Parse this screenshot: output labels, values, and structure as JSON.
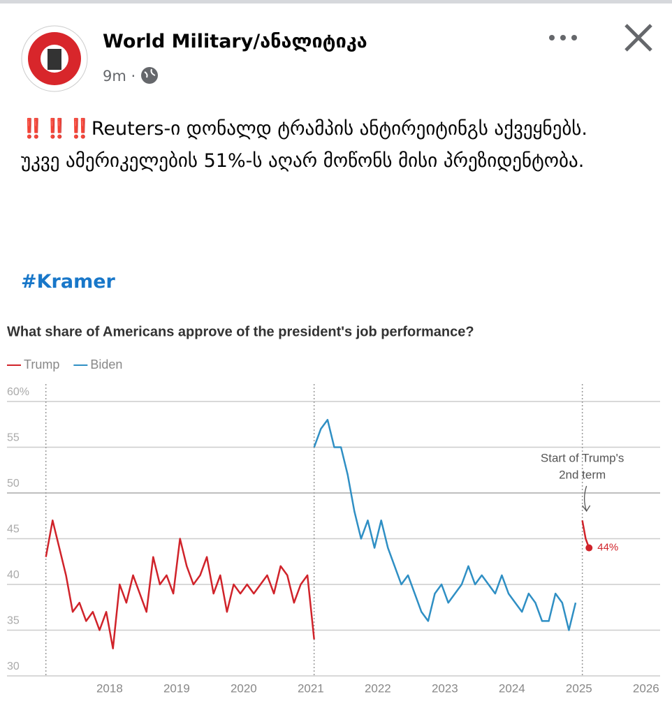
{
  "post": {
    "author": "World Military/ანალიტიკა",
    "time": "9m",
    "paragraphs": [
      "‼️‼️‼️Reuters-ი დონალდ ტრამპის ანტირეიტინგს აქვეყნებს.",
      "უკვე ამერიკელების 51%-ს აღარ მოწონს მისი პრეზიდენტობა."
    ],
    "hashtag": "#Kramer"
  },
  "chart_data": {
    "type": "line",
    "title": "What share of Americans approve of the president's job performance?",
    "annotation": [
      "Start of Trump's",
      "2nd term"
    ],
    "xlim": [
      2016.47,
      2026.21
    ],
    "xticks": [
      2018,
      2019,
      2020,
      2021,
      2022,
      2023,
      2024,
      2025,
      2026
    ],
    "ylim": [
      30,
      60
    ],
    "yticks": [
      30,
      35,
      40,
      45,
      50,
      55,
      {
        "value": 60,
        "label": "60%"
      }
    ],
    "grid": true,
    "markers": [
      2017.05,
      2021.05,
      2025.05
    ],
    "series": [
      {
        "name": "Trump",
        "color": "#d0232a",
        "x": [
          2017.05,
          2017.15,
          2017.25,
          2017.35,
          2017.45,
          2017.55,
          2017.65,
          2017.75,
          2017.85,
          2017.95,
          2018.05,
          2018.15,
          2018.25,
          2018.35,
          2018.45,
          2018.55,
          2018.65,
          2018.75,
          2018.85,
          2018.95,
          2019.05,
          2019.15,
          2019.25,
          2019.35,
          2019.45,
          2019.55,
          2019.65,
          2019.75,
          2019.85,
          2019.95,
          2020.05,
          2020.15,
          2020.25,
          2020.35,
          2020.45,
          2020.55,
          2020.65,
          2020.75,
          2020.85,
          2020.95,
          2021.05,
          null,
          2025.05,
          2025.1,
          2025.15
        ],
        "values": [
          43,
          47,
          44,
          41,
          37,
          38,
          36,
          37,
          35,
          37,
          33,
          40,
          38,
          41,
          39,
          37,
          43,
          40,
          41,
          39,
          45,
          42,
          40,
          41,
          43,
          39,
          41,
          37,
          40,
          39,
          40,
          39,
          40,
          41,
          39,
          42,
          41,
          38,
          40,
          41,
          34,
          null,
          47,
          45,
          44
        ],
        "value_labels": [
          null,
          null,
          null,
          null,
          null,
          null,
          null,
          null,
          null,
          null,
          null,
          null,
          null,
          null,
          null,
          null,
          null,
          null,
          null,
          null,
          null,
          null,
          null,
          null,
          null,
          null,
          null,
          null,
          null,
          null,
          null,
          null,
          null,
          null,
          null,
          null,
          null,
          null,
          null,
          null,
          null,
          null,
          null,
          null,
          "44%"
        ]
      },
      {
        "name": "Biden",
        "color": "#2f8fc4",
        "x": [
          2021.05,
          2021.15,
          2021.25,
          2021.35,
          2021.45,
          2021.55,
          2021.65,
          2021.75,
          2021.85,
          2021.95,
          2022.05,
          2022.15,
          2022.25,
          2022.35,
          2022.45,
          2022.55,
          2022.65,
          2022.75,
          2022.85,
          2022.95,
          2023.05,
          2023.15,
          2023.25,
          2023.35,
          2023.45,
          2023.55,
          2023.65,
          2023.75,
          2023.85,
          2023.95,
          2024.05,
          2024.15,
          2024.25,
          2024.35,
          2024.45,
          2024.55,
          2024.65,
          2024.75,
          2024.85,
          2024.95
        ],
        "values": [
          55,
          57,
          58,
          55,
          55,
          52,
          48,
          45,
          47,
          44,
          47,
          44,
          42,
          40,
          41,
          39,
          37,
          36,
          39,
          40,
          38,
          39,
          40,
          42,
          40,
          41,
          40,
          39,
          41,
          39,
          38,
          37,
          39,
          38,
          36,
          36,
          39,
          38,
          35,
          38
        ]
      }
    ]
  }
}
